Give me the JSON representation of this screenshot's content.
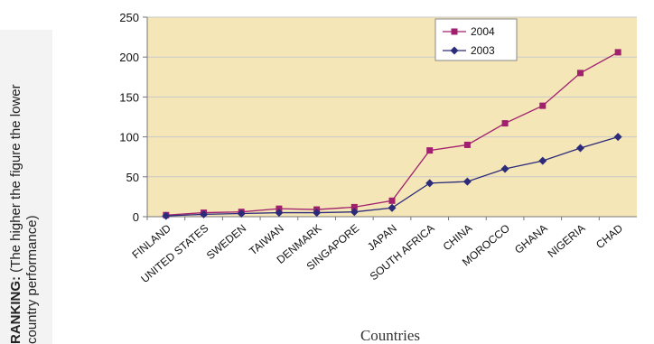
{
  "chart_data": {
    "type": "line",
    "title": "",
    "xlabel": "Countries",
    "ylabel_bold": "RANKING:",
    "ylabel_line1": " (The higher the figure the lower",
    "ylabel_line2": "country performance)",
    "ylim": [
      0,
      250
    ],
    "yticks": [
      0,
      50,
      100,
      150,
      200,
      250
    ],
    "grid": true,
    "legend_position": "top-center",
    "categories": [
      "FINLAND",
      "UNITED STATES",
      "SWEDEN",
      "TAIWAN",
      "DENMARK",
      "SINGAPORE",
      "JAPAN",
      "SOUTH AFRICA",
      "CHINA",
      "MOROCCO",
      "GHANA",
      "NIGERIA",
      "CHAD"
    ],
    "series": [
      {
        "name": "2004",
        "color": "#a0206e",
        "marker": "square",
        "values": [
          2,
          5,
          6,
          10,
          9,
          12,
          20,
          83,
          90,
          117,
          139,
          180,
          206
        ]
      },
      {
        "name": "2003",
        "color": "#2c2b7a",
        "marker": "diamond",
        "values": [
          1,
          3,
          4,
          5,
          5,
          6,
          11,
          42,
          44,
          60,
          70,
          86,
          100
        ]
      }
    ]
  },
  "colors": {
    "plot_background": "#f5e6b8",
    "gridline": "#c9c9c9",
    "y_title_panel": "#f3f3f3"
  }
}
